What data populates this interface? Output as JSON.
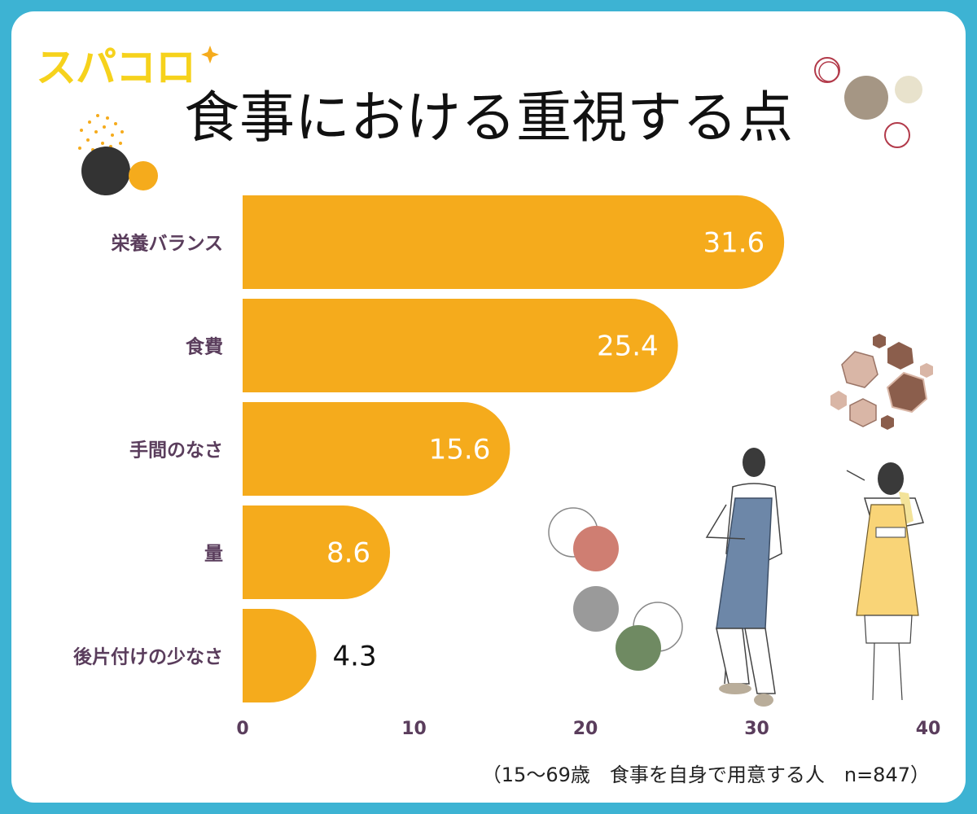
{
  "brand": {
    "logo_text": "スパコロ"
  },
  "header": {
    "title": "食事における重視する点"
  },
  "footnote": "（15〜69歳　食事を自身で用意する人　n=847）",
  "colors": {
    "frame": "#3db3d3",
    "bar": "#f5ab1c",
    "category_text": "#5a3d5c",
    "value_text_inside": "#ffffff",
    "value_text_outside": "#111111"
  },
  "chart_data": {
    "type": "bar",
    "orientation": "horizontal",
    "title": "食事における重視する点",
    "categories": [
      "栄養バランス",
      "食費",
      "手間のなさ",
      "量",
      "後片付けの少なさ"
    ],
    "values": [
      31.6,
      25.4,
      15.6,
      8.6,
      4.3
    ],
    "value_labels": [
      "31.6",
      "25.4",
      "15.6",
      "8.6",
      "4.3"
    ],
    "xlim": [
      0,
      40
    ],
    "ticks": [
      0,
      10,
      20,
      30,
      40
    ],
    "tick_labels": [
      "0",
      "10",
      "20",
      "30",
      "40"
    ],
    "xlabel": "",
    "ylabel": ""
  }
}
